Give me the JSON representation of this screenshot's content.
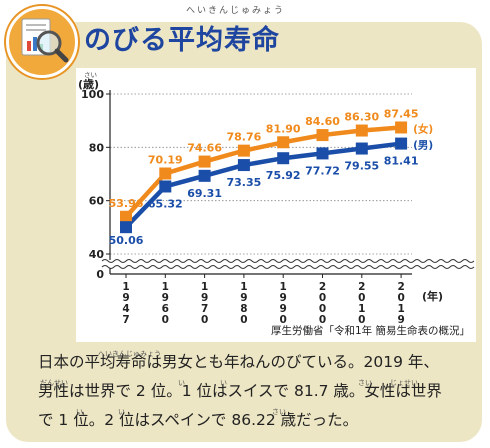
{
  "header": {
    "title": "のびる平均寿命",
    "title_ruby": "へいきんじゅみょう"
  },
  "chart_data": {
    "type": "line",
    "y_unit_label": "(歳)",
    "y_unit_ruby": "さい",
    "x_unit_label": "(年)",
    "categories": [
      "1947",
      "1960",
      "1970",
      "1980",
      "1990",
      "2000",
      "2010",
      "2019"
    ],
    "yticks": [
      "100",
      "80",
      "60",
      "40",
      "0"
    ],
    "ylim": [
      40,
      100
    ],
    "axis_break": true,
    "series": [
      {
        "name": "(女)",
        "color": "#f08a1c",
        "values": [
          53.96,
          70.19,
          74.66,
          78.76,
          81.9,
          84.6,
          86.3,
          87.45
        ],
        "labels": [
          "53.96",
          "70.19",
          "74.66",
          "78.76",
          "81.90",
          "84.60",
          "86.30",
          "87.45"
        ]
      },
      {
        "name": "(男)",
        "color": "#1a4ea8",
        "values": [
          50.06,
          65.32,
          69.31,
          73.35,
          75.92,
          77.72,
          79.55,
          81.41
        ],
        "labels": [
          "50.06",
          "65.32",
          "69.31",
          "73.35",
          "75.92",
          "77.72",
          "79.55",
          "81.41"
        ]
      }
    ],
    "source": "厚生労働省「令和1年 簡易生命表の概況」"
  },
  "body": {
    "line1": "日本の平均寿命は男女とも年ねんのびている。2019 年、",
    "line2": "男性は世界で 2 位。1 位はスイスで 81.7 歳。女性は世界",
    "line3": "で 1 位。2 位はスペインで 86.22 歳だった。",
    "ruby": {
      "heikin": "へいきんじゅみょう",
      "dansei": "だんせい",
      "i1": "い",
      "i2": "い",
      "sai1": "さい",
      "josei": "じょせい",
      "i3": "い",
      "i4": "い",
      "sai2": "さい"
    }
  },
  "colors": {
    "female": "#f08a1c",
    "male": "#1a4ea8",
    "title": "#1e46a0",
    "card": "#ede6c4"
  }
}
